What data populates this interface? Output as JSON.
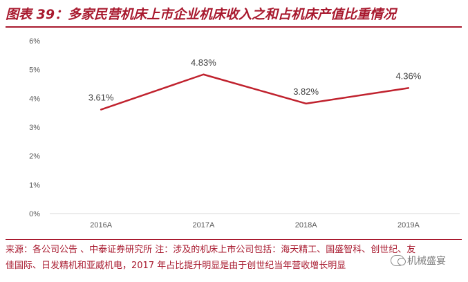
{
  "title": "图表 39：多家民营机床上市企业机床收入之和占机床产值比重情况",
  "chart_data": {
    "type": "line",
    "title": "",
    "xlabel": "",
    "ylabel": "",
    "categories": [
      "2016A",
      "2017A",
      "2018A",
      "2019A"
    ],
    "series": [
      {
        "values": [
          3.61,
          4.83,
          3.82,
          4.36
        ],
        "labels": [
          "3.61%",
          "4.83%",
          "3.82%",
          "4.36%"
        ],
        "color": "#c0222e"
      }
    ],
    "ylim": [
      0,
      6
    ],
    "yticks": [
      "0%",
      "1%",
      "2%",
      "3%",
      "4%",
      "5%",
      "6%"
    ],
    "grid": false,
    "legend": "none"
  },
  "source": "来源：各公司公告 、中泰证券研究所   注：涉及的机床上市公司包括：海天精工、国盛智科、创世纪、友佳国际、日发精机和亚威机电，2017 年占比提升明显是由于创世纪当年营收增长明显",
  "watermark": "机械盛宴",
  "colors": {
    "accent": "#a8192e",
    "line": "#c0222e",
    "axis": "#d9d9d9",
    "text": "#595959"
  }
}
